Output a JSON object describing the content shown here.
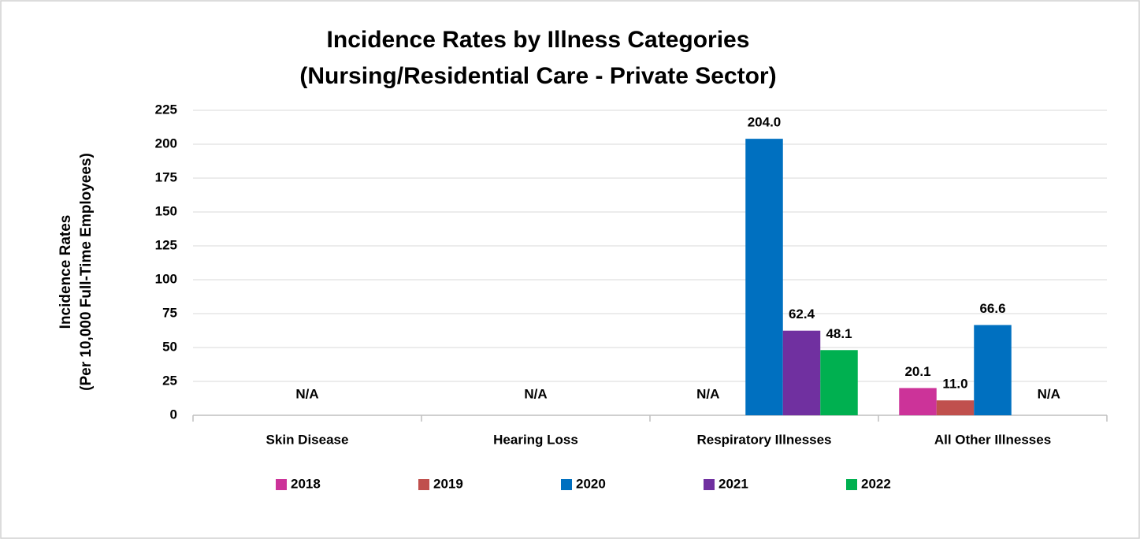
{
  "chart_data": {
    "type": "bar",
    "title": [
      "Incidence Rates by Illness Categories",
      "(Nursing/Residential Care - Private Sector)"
    ],
    "y_label": [
      "Incidence Rates",
      "(Per 10,000 Full-Time Employees)"
    ],
    "categories": [
      "Skin Disease",
      "Hearing Loss",
      "Respiratory Illnesses",
      "All Other Illnesses"
    ],
    "series": [
      {
        "name": "2018",
        "color": "#cc3399",
        "values": [
          null,
          null,
          null,
          20.1
        ],
        "value_labels": [
          null,
          null,
          null,
          "20.1"
        ]
      },
      {
        "name": "2019",
        "color": "#c0504d",
        "values": [
          null,
          null,
          null,
          11.0
        ],
        "value_labels": [
          null,
          null,
          null,
          "11.0"
        ]
      },
      {
        "name": "2020",
        "color": "#0070c0",
        "values": [
          null,
          null,
          204.0,
          66.6
        ],
        "value_labels": [
          null,
          null,
          "204.0",
          "66.6"
        ]
      },
      {
        "name": "2021",
        "color": "#7030a0",
        "values": [
          null,
          null,
          62.4,
          null
        ],
        "value_labels": [
          null,
          null,
          "62.4",
          null
        ]
      },
      {
        "name": "2022",
        "color": "#00b050",
        "values": [
          null,
          null,
          48.1,
          null
        ],
        "value_labels": [
          null,
          null,
          "48.1",
          null
        ]
      }
    ],
    "annotations": [
      {
        "text": "N/A",
        "category": 0,
        "series": [
          0,
          1,
          2,
          3,
          4
        ]
      },
      {
        "text": "N/A",
        "category": 1,
        "series": [
          0,
          1,
          2,
          3,
          4
        ]
      },
      {
        "text": "N/A",
        "category": 2,
        "series": [
          0,
          1
        ]
      },
      {
        "text": "N/A",
        "category": 3,
        "series": [
          3,
          4
        ]
      }
    ],
    "ylim": [
      0,
      225
    ],
    "yticks": [
      0,
      25,
      50,
      75,
      100,
      125,
      150,
      175,
      200,
      225
    ],
    "grid": true,
    "legend": "bottom"
  }
}
